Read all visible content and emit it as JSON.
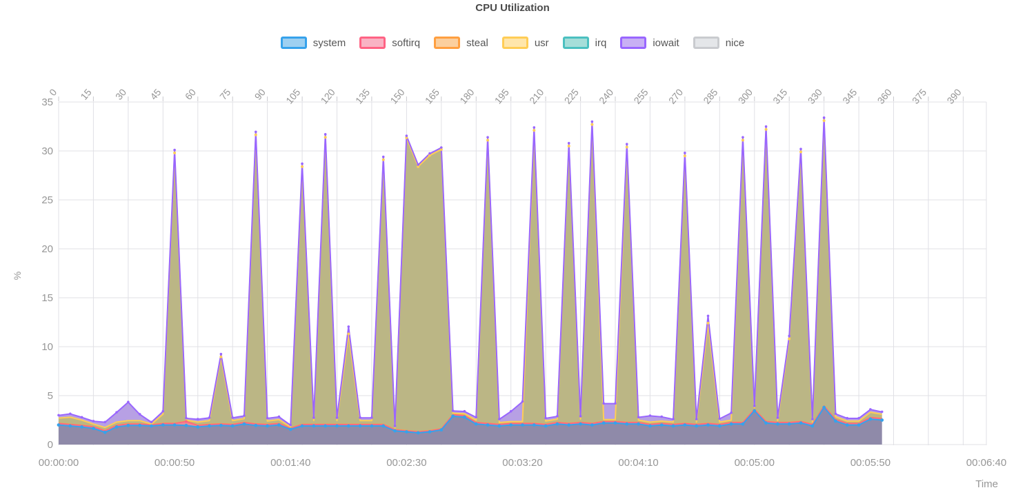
{
  "title": "CPU Utilization",
  "axes": {
    "y_axis": {
      "label": "%",
      "ticks": [
        0,
        5,
        10,
        15,
        20,
        25,
        30,
        35
      ]
    },
    "top_axis": {
      "ticks": [
        0,
        15,
        30,
        45,
        60,
        75,
        90,
        105,
        120,
        135,
        150,
        165,
        180,
        195,
        210,
        225,
        240,
        255,
        270,
        285,
        300,
        315,
        330,
        345,
        360,
        375,
        390
      ]
    },
    "bottom_axis": {
      "label": "Time",
      "ticks": [
        {
          "seconds": 0,
          "label": "00:00:00"
        },
        {
          "seconds": 50,
          "label": "00:00:50"
        },
        {
          "seconds": 100,
          "label": "00:01:40"
        },
        {
          "seconds": 150,
          "label": "00:02:30"
        },
        {
          "seconds": 200,
          "label": "00:03:20"
        },
        {
          "seconds": 250,
          "label": "00:04:10"
        },
        {
          "seconds": 300,
          "label": "00:05:00"
        },
        {
          "seconds": 350,
          "label": "00:05:50"
        },
        {
          "seconds": 400,
          "label": "00:06:40"
        }
      ]
    }
  },
  "legend": [
    {
      "label": "system",
      "border": "#36a2eb",
      "fill": "#9ed0f1"
    },
    {
      "label": "softirq",
      "border": "#ff6384",
      "fill": "#f9b3c4"
    },
    {
      "label": "steal",
      "border": "#ff9f40",
      "fill": "#fbcf9e"
    },
    {
      "label": "usr",
      "border": "#ffcd56",
      "fill": "#ffe6ab"
    },
    {
      "label": "irq",
      "border": "#4bc0c0",
      "fill": "#a5ded9"
    },
    {
      "label": "iowait",
      "border": "#9966ff",
      "fill": "#c8b0f4"
    },
    {
      "label": "nice",
      "border": "#c9cbcf",
      "fill": "#e4e6e9"
    }
  ],
  "chart_data": {
    "type": "area",
    "stacked": true,
    "title": "CPU Utilization",
    "xlabel": "Time",
    "ylabel": "%",
    "ylim": [
      0,
      35
    ],
    "xlim_seconds": [
      0,
      400
    ],
    "grid": true,
    "legend_position": "top",
    "x_start": 0,
    "x_step": 5,
    "series": [
      {
        "name": "system",
        "line_color": "#36a2eb",
        "band_color": "#8f8aa9",
        "values": [
          2.0,
          1.9,
          1.8,
          1.65,
          1.25,
          1.8,
          1.95,
          1.95,
          1.9,
          2.0,
          2.0,
          1.95,
          1.8,
          1.9,
          1.95,
          1.9,
          2.1,
          1.95,
          1.9,
          2.0,
          1.55,
          1.9,
          1.9,
          1.9,
          1.9,
          1.9,
          1.9,
          1.9,
          1.9,
          1.4,
          1.3,
          1.2,
          1.3,
          1.5,
          2.9,
          2.8,
          2.1,
          2.0,
          1.9,
          2.0,
          2.0,
          2.0,
          1.9,
          2.1,
          2.0,
          2.1,
          2.0,
          2.2,
          2.2,
          2.1,
          2.1,
          1.9,
          2.0,
          1.9,
          2.0,
          1.9,
          2.0,
          1.9,
          2.1,
          2.1,
          3.45,
          2.2,
          2.1,
          2.1,
          2.2,
          1.9,
          3.8,
          2.4,
          2.0,
          2.0,
          2.6,
          2.5
        ]
      },
      {
        "name": "softirq",
        "line_color": "#ff6384",
        "band_color": "#ec8b95",
        "values": [
          0.15,
          0.15,
          0.15,
          0.15,
          0.15,
          0.15,
          0.15,
          0.15,
          0.1,
          0.15,
          0.15,
          0.4,
          0.15,
          0.15,
          0.15,
          0.15,
          0.15,
          0.15,
          0.15,
          0.15,
          0.1,
          0.15,
          0.15,
          0.15,
          0.15,
          0.15,
          0.15,
          0.15,
          0.15,
          0.1,
          0.1,
          0.1,
          0.1,
          0.1,
          0.15,
          0.15,
          0.15,
          0.15,
          0.15,
          0.15,
          0.15,
          0.15,
          0.15,
          0.15,
          0.15,
          0.15,
          0.15,
          0.15,
          0.15,
          0.15,
          0.15,
          0.15,
          0.15,
          0.15,
          0.15,
          0.15,
          0.15,
          0.15,
          0.15,
          0.15,
          0.15,
          0.15,
          0.15,
          0.15,
          0.15,
          0.15,
          0.15,
          0.15,
          0.15,
          0.15,
          0.15,
          0.15
        ]
      },
      {
        "name": "steal",
        "line_color": "#ff9f40",
        "band_color": "#f2b177",
        "values": [
          0.05,
          0.05,
          0.05,
          0.05,
          0.05,
          0.05,
          0.05,
          0.05,
          0.05,
          0.05,
          0.05,
          0.05,
          0.05,
          0.05,
          0.05,
          0.05,
          0.05,
          0.05,
          0.05,
          0.05,
          0.05,
          0.05,
          0.05,
          0.05,
          0.05,
          0.05,
          0.05,
          0.05,
          0.05,
          0.05,
          0.05,
          0.05,
          0.05,
          0.05,
          0.05,
          0.05,
          0.05,
          0.05,
          0.05,
          0.05,
          0.05,
          0.05,
          0.05,
          0.05,
          0.05,
          0.05,
          0.05,
          0.05,
          0.05,
          0.05,
          0.05,
          0.05,
          0.05,
          0.05,
          0.05,
          0.05,
          0.05,
          0.05,
          0.05,
          0.05,
          0.05,
          0.05,
          0.05,
          0.05,
          0.05,
          0.05,
          0.05,
          0.05,
          0.05,
          0.05,
          0.05,
          0.05
        ]
      },
      {
        "name": "usr",
        "line_color": "#ffcd56",
        "band_color": "#bbb685",
        "values": [
          0.5,
          0.7,
          0.5,
          0.25,
          0.3,
          0.3,
          0.3,
          0.3,
          0.05,
          0.9,
          27.6,
          0.1,
          0.3,
          0.35,
          6.8,
          0.35,
          0.35,
          29.5,
          0.3,
          0.35,
          0.1,
          26.3,
          0.35,
          29.3,
          0.35,
          9.2,
          0.35,
          0.35,
          27.0,
          0.15,
          29.9,
          27.05,
          28.1,
          28.5,
          0.1,
          0.15,
          0.2,
          28.9,
          0.15,
          0.15,
          0.15,
          29.9,
          0.3,
          0.3,
          28.3,
          0.3,
          30.5,
          0.15,
          0.15,
          28.1,
          0.2,
          0.2,
          0.2,
          0.2,
          27.3,
          0.2,
          10.2,
          0.2,
          0.2,
          28.8,
          0.1,
          29.8,
          0.15,
          8.5,
          27.5,
          0.2,
          29.1,
          0.25,
          0.2,
          0.2,
          0.5,
          0.4
        ]
      },
      {
        "name": "irq",
        "line_color": "#4bc0c0",
        "band_color": "#8fd0ca",
        "values": [
          0.03,
          0.03,
          0.03,
          0.03,
          0.03,
          0.03,
          0.03,
          0.03,
          0.03,
          0.03,
          0.03,
          0.03,
          0.03,
          0.03,
          0.03,
          0.03,
          0.03,
          0.03,
          0.03,
          0.03,
          0.03,
          0.03,
          0.03,
          0.03,
          0.03,
          0.03,
          0.03,
          0.03,
          0.03,
          0.03,
          0.03,
          0.03,
          0.03,
          0.03,
          0.03,
          0.03,
          0.03,
          0.03,
          0.03,
          0.03,
          0.03,
          0.03,
          0.03,
          0.03,
          0.03,
          0.03,
          0.03,
          0.03,
          0.03,
          0.03,
          0.03,
          0.03,
          0.03,
          0.03,
          0.03,
          0.03,
          0.03,
          0.03,
          0.03,
          0.03,
          0.03,
          0.03,
          0.03,
          0.03,
          0.03,
          0.03,
          0.03,
          0.03,
          0.03,
          0.03,
          0.03,
          0.03
        ]
      },
      {
        "name": "iowait",
        "line_color": "#9966ff",
        "band_color": "#b7a0e4",
        "values": [
          0.25,
          0.3,
          0.25,
          0.25,
          0.5,
          0.95,
          1.85,
          0.6,
          0.15,
          0.25,
          0.25,
          0.15,
          0.25,
          0.25,
          0.25,
          0.25,
          0.25,
          0.25,
          0.25,
          0.25,
          0.15,
          0.25,
          0.25,
          0.25,
          0.25,
          0.7,
          0.25,
          0.25,
          0.25,
          0.15,
          0.15,
          0.15,
          0.15,
          0.15,
          0.2,
          0.2,
          0.25,
          0.25,
          0.3,
          1.0,
          2.0,
          0.25,
          0.25,
          0.25,
          0.25,
          0.25,
          0.25,
          1.6,
          1.6,
          0.25,
          0.25,
          0.6,
          0.4,
          0.25,
          0.25,
          0.25,
          0.7,
          0.3,
          0.7,
          0.25,
          0.15,
          0.25,
          0.25,
          0.25,
          0.25,
          0.25,
          0.25,
          0.25,
          0.25,
          0.25,
          0.25,
          0.2
        ]
      },
      {
        "name": "nice",
        "line_color": "#c9cbcf",
        "band_color": "#d8d8dc",
        "values": [
          0.02,
          0.02,
          0.02,
          0.02,
          0.02,
          0.02,
          0.02,
          0.02,
          0.02,
          0.02,
          0.02,
          0.02,
          0.02,
          0.02,
          0.02,
          0.02,
          0.02,
          0.02,
          0.02,
          0.02,
          0.02,
          0.02,
          0.02,
          0.02,
          0.02,
          0.02,
          0.02,
          0.02,
          0.02,
          0.02,
          0.02,
          0.02,
          0.02,
          0.02,
          0.02,
          0.02,
          0.02,
          0.02,
          0.02,
          0.02,
          0.02,
          0.02,
          0.02,
          0.02,
          0.02,
          0.02,
          0.02,
          0.02,
          0.02,
          0.02,
          0.02,
          0.02,
          0.02,
          0.02,
          0.02,
          0.02,
          0.02,
          0.02,
          0.02,
          0.02,
          0.02,
          0.02,
          0.02,
          0.02,
          0.02,
          0.02,
          0.02,
          0.02,
          0.02,
          0.02,
          0.02,
          0.02
        ]
      }
    ]
  }
}
